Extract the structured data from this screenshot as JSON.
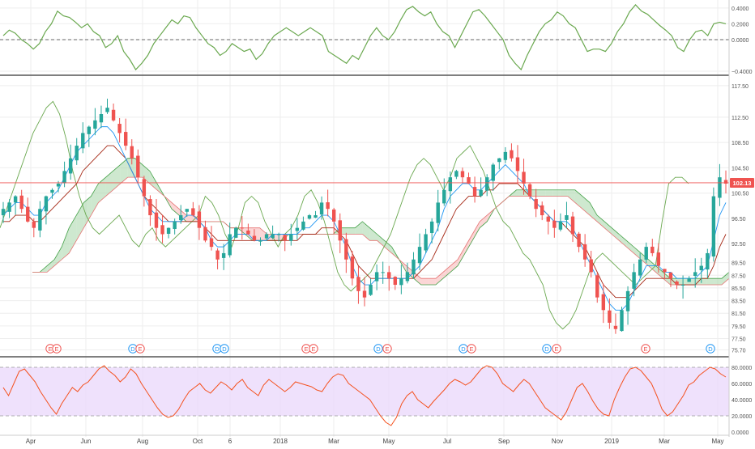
{
  "chart_data": [
    {
      "type": "line",
      "pane": "oscillator",
      "color": "#6aa84f",
      "zero_line": true,
      "ylim": [
        -0.42,
        0.46
      ],
      "y_ticks": [
        "0.4000",
        "0.2000",
        "0.0000",
        "−0.4000"
      ],
      "y_tick_values": [
        0.4,
        0.2,
        0.0,
        -0.4
      ],
      "values": [
        0.05,
        0.12,
        0.08,
        0.0,
        -0.05,
        -0.12,
        -0.05,
        0.1,
        0.2,
        0.36,
        0.3,
        0.28,
        0.22,
        0.15,
        0.2,
        0.1,
        0.05,
        -0.1,
        -0.05,
        0.05,
        -0.15,
        -0.25,
        -0.38,
        -0.3,
        -0.2,
        -0.05,
        0.05,
        0.15,
        0.25,
        0.2,
        0.3,
        0.28,
        0.15,
        0.05,
        -0.05,
        -0.1,
        -0.2,
        -0.15,
        -0.05,
        -0.1,
        -0.15,
        -0.12,
        -0.25,
        -0.18,
        -0.05,
        0.05,
        0.1,
        0.15,
        0.1,
        0.05,
        0.1,
        0.15,
        0.1,
        0.05,
        -0.15,
        -0.2,
        -0.25,
        -0.3,
        -0.2,
        -0.25,
        -0.1,
        0.05,
        0.15,
        0.05,
        0.0,
        0.1,
        0.25,
        0.38,
        0.42,
        0.35,
        0.3,
        0.35,
        0.2,
        0.1,
        0.05,
        -0.1,
        0.05,
        0.2,
        0.35,
        0.38,
        0.3,
        0.2,
        0.1,
        0.0,
        -0.2,
        -0.3,
        -0.38,
        -0.2,
        -0.05,
        0.1,
        0.2,
        0.25,
        0.35,
        0.3,
        0.2,
        0.15,
        0.0,
        -0.15,
        -0.12,
        -0.12,
        -0.15,
        -0.05,
        0.1,
        0.2,
        0.35,
        0.44,
        0.36,
        0.32,
        0.25,
        0.18,
        0.12,
        0.05,
        -0.1,
        -0.15,
        0.0,
        0.1,
        0.12,
        0.05,
        0.2,
        0.22,
        0.2
      ]
    },
    {
      "type": "candlestick",
      "pane": "price",
      "overlays": [
        "ichimoku-cloud",
        "conversion-line",
        "base-line",
        "lagging-span"
      ],
      "ylim": [
        75.0,
        118.5
      ],
      "y_ticks": [
        "117.50",
        "112.50",
        "108.50",
        "104.50",
        "100.50",
        "96.50",
        "92.50",
        "89.50",
        "87.50",
        "85.50",
        "83.50",
        "81.50",
        "79.50",
        "77.50",
        "75.70"
      ],
      "y_tick_values": [
        117.5,
        112.5,
        108.5,
        104.5,
        100.5,
        96.5,
        92.5,
        89.5,
        87.5,
        85.5,
        83.5,
        81.5,
        79.5,
        77.5,
        75.7
      ],
      "last_price": "102.13",
      "last_price_value": 102.13,
      "closes": [
        98,
        99,
        100,
        98,
        96,
        95,
        98,
        100,
        101,
        102,
        104,
        106,
        108,
        110,
        111,
        112,
        113,
        114,
        112,
        110,
        108,
        106,
        103,
        100,
        97,
        95,
        94,
        95,
        96,
        97,
        98,
        97,
        95,
        93,
        92,
        90,
        91,
        94,
        95,
        95,
        94,
        93,
        93,
        94,
        94,
        94,
        93,
        94,
        95,
        96,
        97,
        97,
        99,
        98,
        96,
        93,
        90,
        87,
        85,
        84,
        86,
        88,
        88,
        87,
        86,
        87,
        88,
        90,
        92,
        94,
        96,
        99,
        101,
        103,
        104,
        103,
        102,
        100,
        101,
        103,
        105,
        106,
        107,
        106,
        104,
        102,
        100,
        98,
        97,
        96,
        95,
        96,
        97,
        94,
        92,
        90,
        88,
        84,
        82,
        80,
        79,
        82,
        85,
        88,
        90,
        92,
        91,
        89,
        88,
        87,
        86,
        86,
        87,
        88,
        89,
        91,
        100,
        103,
        102
      ],
      "conversion_line": [
        97,
        98,
        99,
        99,
        98,
        97,
        97,
        99,
        100,
        101,
        103,
        105,
        107,
        108,
        109,
        110,
        111,
        111,
        110,
        108,
        106,
        104,
        102,
        100,
        98,
        97,
        96,
        96,
        96,
        96,
        97,
        97,
        96,
        95,
        93,
        92,
        92,
        93,
        94,
        94,
        94,
        93,
        93,
        93,
        94,
        94,
        94,
        94,
        94,
        95,
        95,
        96,
        97,
        97,
        96,
        94,
        92,
        89,
        87,
        86,
        86,
        87,
        87,
        87,
        87,
        87,
        87,
        88,
        89,
        91,
        93,
        95,
        98,
        100,
        101,
        102,
        102,
        101,
        101,
        102,
        103,
        104,
        105,
        104,
        103,
        102,
        100,
        99,
        98,
        97,
        96,
        96,
        96,
        95,
        93,
        91,
        89,
        87,
        85,
        83,
        82,
        82,
        83,
        85,
        87,
        89,
        89,
        89,
        88,
        88,
        87,
        87,
        87,
        87,
        88,
        89,
        93,
        97,
        99
      ],
      "base_line": [
        96,
        96,
        97,
        97,
        97,
        96,
        96,
        97,
        98,
        99,
        100,
        101,
        102,
        104,
        105,
        106,
        107,
        108,
        108,
        107,
        106,
        104,
        102,
        100,
        99,
        98,
        97,
        96,
        96,
        96,
        96,
        96,
        96,
        95,
        94,
        93,
        93,
        93,
        93,
        93,
        93,
        93,
        93,
        93,
        93,
        93,
        93,
        93,
        93,
        94,
        94,
        94,
        95,
        95,
        95,
        94,
        93,
        91,
        89,
        88,
        87,
        87,
        87,
        87,
        87,
        87,
        87,
        87,
        88,
        89,
        90,
        92,
        94,
        96,
        98,
        99,
        100,
        100,
        100,
        101,
        101,
        102,
        102,
        102,
        102,
        101,
        100,
        99,
        98,
        97,
        96,
        96,
        95,
        94,
        93,
        92,
        90,
        88,
        86,
        85,
        84,
        84,
        84,
        85,
        86,
        87,
        87,
        87,
        87,
        87,
        86,
        86,
        86,
        86,
        87,
        87,
        89,
        92,
        94
      ],
      "lagging_span": [
        95,
        98,
        101,
        104,
        107,
        110,
        112,
        114,
        115,
        113,
        109,
        104,
        100,
        97,
        95,
        94,
        95,
        96,
        97,
        95,
        93,
        92,
        94,
        95,
        93,
        92,
        93,
        94,
        95,
        96,
        97,
        100,
        99,
        97,
        94,
        92,
        95,
        99,
        100,
        99,
        96,
        94,
        92,
        94,
        95,
        97,
        100,
        101,
        99,
        96,
        92,
        88,
        86,
        85,
        86,
        87,
        88,
        90,
        92,
        94,
        97,
        100,
        103,
        105,
        106,
        105,
        103,
        101,
        103,
        106,
        107,
        108,
        106,
        104,
        101,
        98,
        96,
        95,
        93,
        91,
        90,
        88,
        86,
        82,
        80,
        79,
        80,
        82,
        85,
        88,
        90,
        91,
        90,
        89,
        88,
        87,
        86,
        87,
        88,
        89,
        96,
        102,
        103,
        103,
        102
      ],
      "span_a": [
        88,
        88,
        89,
        90,
        92,
        95,
        97,
        99,
        100,
        102,
        103,
        104,
        105,
        106,
        106,
        105,
        104,
        102,
        100,
        98,
        97,
        96,
        96,
        96,
        96,
        96,
        96,
        95,
        95,
        94,
        93,
        93,
        93,
        93,
        93,
        94,
        94,
        94,
        94,
        94,
        94,
        94,
        95,
        95,
        95,
        96,
        95,
        94,
        93,
        92,
        90,
        88,
        87,
        86,
        86,
        86,
        87,
        88,
        89,
        91,
        93,
        95,
        96,
        98,
        99,
        100,
        101,
        101,
        101,
        101,
        101,
        101,
        101,
        101,
        101,
        100,
        99,
        97,
        96,
        95,
        94,
        93,
        92,
        91,
        90,
        89,
        88,
        87,
        87,
        87,
        87,
        87,
        87,
        87,
        87,
        88
      ],
      "span_b": [
        88,
        88,
        88,
        89,
        90,
        91,
        93,
        95,
        97,
        99,
        100,
        101,
        102,
        103,
        103,
        103,
        102,
        101,
        100,
        99,
        98,
        97,
        97,
        96,
        96,
        96,
        96,
        95,
        95,
        95,
        95,
        95,
        94,
        94,
        94,
        94,
        94,
        94,
        94,
        94,
        94,
        94,
        94,
        94,
        94,
        94,
        93,
        93,
        92,
        91,
        90,
        89,
        88,
        87,
        87,
        87,
        88,
        89,
        90,
        92,
        94,
        96,
        97,
        98,
        99,
        100,
        100,
        100,
        100,
        100,
        100,
        100,
        100,
        100,
        99,
        98,
        97,
        96,
        95,
        94,
        93,
        92,
        91,
        90,
        89,
        88,
        87,
        86,
        86,
        86,
        86,
        86,
        86,
        86,
        86,
        87
      ]
    },
    {
      "type": "line",
      "pane": "rsi",
      "color": "#f4511e",
      "band_color": "#e9d7fb",
      "ylim": [
        0,
        88
      ],
      "band": [
        20,
        80
      ],
      "y_ticks": [
        "80.0000",
        "60.0000",
        "40.0000",
        "20.0000",
        "0.0000"
      ],
      "y_tick_values": [
        80,
        60,
        40,
        20,
        0
      ],
      "values": [
        55,
        45,
        60,
        75,
        78,
        70,
        62,
        50,
        40,
        30,
        22,
        35,
        45,
        55,
        50,
        58,
        62,
        70,
        78,
        82,
        75,
        70,
        62,
        68,
        78,
        72,
        60,
        50,
        40,
        30,
        22,
        18,
        20,
        28,
        40,
        50,
        55,
        60,
        52,
        48,
        55,
        62,
        58,
        52,
        60,
        65,
        55,
        50,
        45,
        58,
        65,
        60,
        55,
        50,
        55,
        62,
        60,
        58,
        56,
        52,
        50,
        60,
        68,
        72,
        70,
        60,
        55,
        50,
        45,
        40,
        30,
        20,
        12,
        8,
        18,
        35,
        45,
        50,
        40,
        35,
        30,
        38,
        45,
        52,
        60,
        65,
        62,
        58,
        62,
        70,
        78,
        82,
        80,
        72,
        60,
        55,
        50,
        58,
        65,
        60,
        50,
        40,
        30,
        25,
        20,
        15,
        25,
        40,
        55,
        60,
        50,
        38,
        28,
        22,
        20,
        40,
        55,
        68,
        78,
        80,
        76,
        68,
        60,
        45,
        28,
        20,
        25,
        35,
        45,
        58,
        62,
        70,
        75,
        80,
        78,
        72,
        68
      ]
    }
  ],
  "time_axis": {
    "labels": [
      "Apr",
      "Jun",
      "Aug",
      "Oct",
      "6",
      "2018",
      "Mar",
      "May",
      "Jul",
      "Sep",
      "Nov",
      "2019",
      "Mar",
      "May"
    ]
  },
  "events": {
    "labels": [
      "E",
      "E",
      "D",
      "E",
      "D",
      "D",
      "E",
      "E",
      "D",
      "E",
      "D",
      "E",
      "D",
      "E",
      "E",
      "D"
    ]
  },
  "colors": {
    "up": "#26a69a",
    "down": "#ef5350",
    "cloud_up": "#a5d6a7",
    "cloud_down": "#f8b4b4",
    "price_line": "#ef5350",
    "conversion": "#2196f3",
    "base": "#a52714",
    "lagging": "#6aa84f",
    "pane_divider": "#555555",
    "grid": "#eeeeee",
    "event_e": "#ef5350",
    "event_d": "#2196f3"
  }
}
